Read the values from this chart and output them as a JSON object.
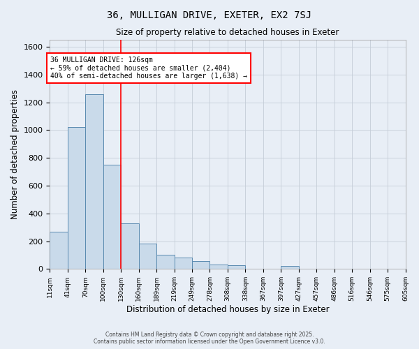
{
  "title": "36, MULLIGAN DRIVE, EXETER, EX2 7SJ",
  "subtitle": "Size of property relative to detached houses in Exeter",
  "xlabel": "Distribution of detached houses by size in Exeter",
  "ylabel": "Number of detached properties",
  "bin_labels": [
    "11sqm",
    "41sqm",
    "70sqm",
    "100sqm",
    "130sqm",
    "160sqm",
    "189sqm",
    "219sqm",
    "249sqm",
    "278sqm",
    "308sqm",
    "338sqm",
    "367sqm",
    "397sqm",
    "427sqm",
    "457sqm",
    "486sqm",
    "516sqm",
    "546sqm",
    "575sqm",
    "605sqm"
  ],
  "values": [
    270,
    1020,
    1260,
    750,
    330,
    185,
    100,
    80,
    55,
    30,
    25,
    0,
    0,
    20,
    0,
    0,
    0,
    0,
    0,
    0
  ],
  "bar_color": "#c9daea",
  "bar_edge_color": "#5a8ab0",
  "bg_color": "#e8eef6",
  "grid_color": "#c5cdd8",
  "red_line_bin_index": 3,
  "ylim": [
    0,
    1650
  ],
  "yticks": [
    0,
    200,
    400,
    600,
    800,
    1000,
    1200,
    1400,
    1600
  ],
  "annotation_text": "36 MULLIGAN DRIVE: 126sqm\n← 59% of detached houses are smaller (2,404)\n40% of semi-detached houses are larger (1,638) →",
  "footer1": "Contains HM Land Registry data © Crown copyright and database right 2025.",
  "footer2": "Contains public sector information licensed under the Open Government Licence v3.0."
}
